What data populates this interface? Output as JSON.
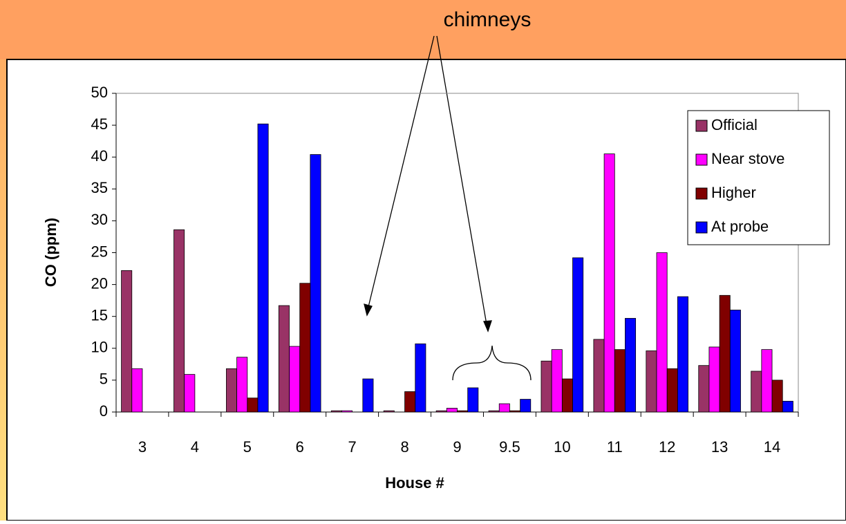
{
  "chart_data": {
    "type": "bar",
    "annotation": "chimneys",
    "x_label": "House #",
    "y_label": "CO (ppm)",
    "categories": [
      "3",
      "4",
      "5",
      "6",
      "7",
      "8",
      "9",
      "9.5",
      "10",
      "11",
      "12",
      "13",
      "14"
    ],
    "series": [
      {
        "name": "Official",
        "color": "#993366",
        "values": [
          22.2,
          28.6,
          6.8,
          16.7,
          0.2,
          0.2,
          0.2,
          0.2,
          8,
          11.4,
          9.6,
          7.3,
          6.4
        ]
      },
      {
        "name": "Near stove",
        "color": "#ff00ff",
        "values": [
          6.8,
          5.9,
          8.6,
          10.3,
          0.2,
          null,
          0.6,
          1.3,
          9.8,
          40.5,
          25,
          10.2,
          9.8
        ]
      },
      {
        "name": "Higher",
        "color": "#800000",
        "values": [
          null,
          null,
          2.2,
          20.2,
          null,
          3.2,
          0.2,
          0.2,
          5.2,
          9.8,
          6.8,
          18.3,
          5
        ]
      },
      {
        "name": "At probe",
        "color": "#0000ff",
        "values": [
          null,
          null,
          45.2,
          40.4,
          5.2,
          10.7,
          3.8,
          2,
          24.2,
          14.7,
          18.1,
          16,
          1.7
        ]
      }
    ],
    "ylim": [
      0,
      50
    ],
    "yticks": [
      0,
      5,
      10,
      15,
      20,
      25,
      30,
      35,
      40,
      45,
      50
    ],
    "grid": false,
    "legend": "upper right"
  }
}
